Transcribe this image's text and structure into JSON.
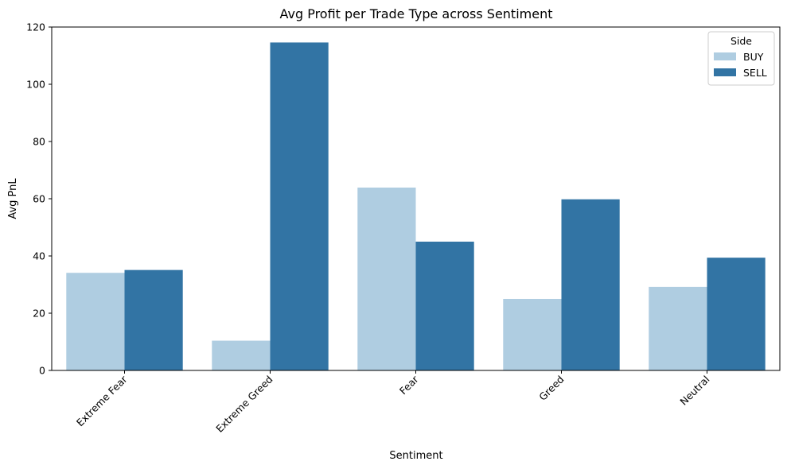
{
  "chart_data": {
    "type": "bar",
    "title": "Avg Profit per Trade Type across Sentiment",
    "xlabel": "Sentiment",
    "ylabel": "Avg PnL",
    "categories": [
      "Extreme Fear",
      "Extreme Greed",
      "Fear",
      "Greed",
      "Neutral"
    ],
    "series": [
      {
        "name": "BUY",
        "values": [
          34.1,
          10.4,
          63.9,
          25.0,
          29.2
        ],
        "color": "#afcde1"
      },
      {
        "name": "SELL",
        "values": [
          35.1,
          114.6,
          45.0,
          59.8,
          39.4
        ],
        "color": "#3274a4"
      }
    ],
    "ylim": [
      0,
      120
    ],
    "yticks": [
      0,
      20,
      40,
      60,
      80,
      100,
      120
    ],
    "legend": {
      "title": "Side",
      "placement": "top-right"
    },
    "grid": false,
    "xtick_rotation": 45
  }
}
